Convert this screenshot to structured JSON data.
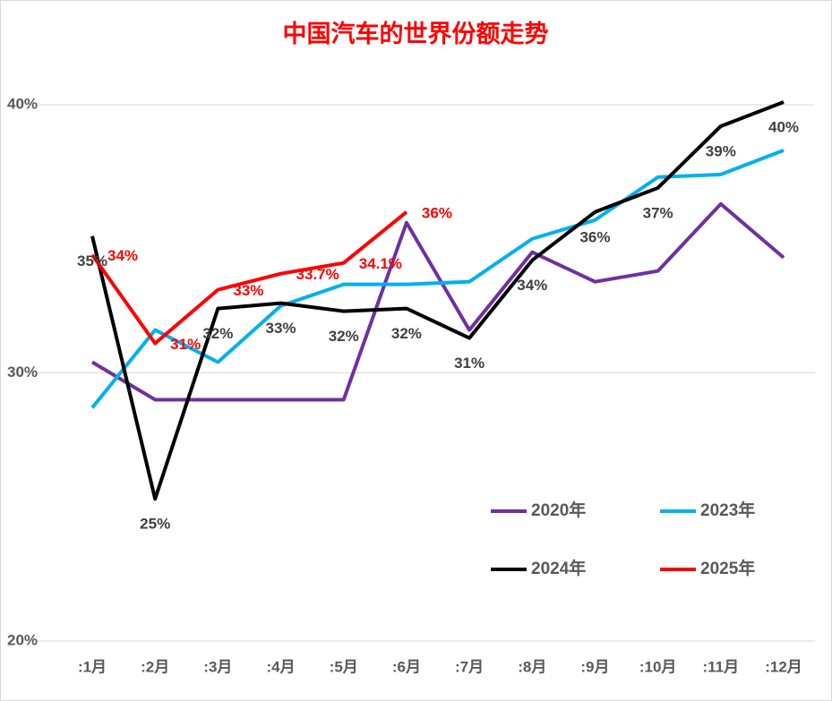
{
  "chart_data": {
    "type": "line",
    "title": "中国汽车的世界份额走势",
    "categories": [
      ":1月",
      ":2月",
      ":3月",
      ":4月",
      ":5月",
      ":6月",
      ":7月",
      ":8月",
      ":9月",
      ":10月",
      ":11月",
      ":12月"
    ],
    "ylim": [
      20,
      40
    ],
    "yticks": [
      {
        "value": 20,
        "label": "20%"
      },
      {
        "value": 30,
        "label": "30%"
      },
      {
        "value": 40,
        "label": "40%"
      }
    ],
    "grid": true,
    "legend": "lower right",
    "series": [
      {
        "name": "2020年",
        "color": "#7030a0",
        "values": [
          30.4,
          29.0,
          29.0,
          29.0,
          29.0,
          35.6,
          31.6,
          34.5,
          33.4,
          33.8,
          36.3,
          34.3
        ]
      },
      {
        "name": "2023年",
        "color": "#00b0f0",
        "values": [
          28.7,
          31.6,
          30.4,
          32.5,
          33.3,
          33.3,
          33.4,
          35.0,
          35.7,
          37.3,
          37.4,
          38.3
        ]
      },
      {
        "name": "2024年",
        "color": "#000000",
        "values": [
          35.1,
          25.3,
          32.4,
          32.6,
          32.3,
          32.4,
          31.3,
          34.2,
          36.0,
          36.9,
          39.2,
          40.1
        ],
        "value_labels": [
          "35%",
          "25%",
          "32%",
          "33%",
          "32%",
          "32%",
          "31%",
          "34%",
          "36%",
          "37%",
          "39%",
          "40%"
        ]
      },
      {
        "name": "2025年",
        "color": "#ff0000",
        "values": [
          34.4,
          31.1,
          33.1,
          33.7,
          34.1,
          36.0,
          null,
          null,
          null,
          null,
          null,
          null
        ],
        "value_labels": [
          "34%",
          "31%",
          "33%",
          "33.7%",
          "34.1%",
          "36%",
          null,
          null,
          null,
          null,
          null,
          null
        ]
      }
    ]
  }
}
